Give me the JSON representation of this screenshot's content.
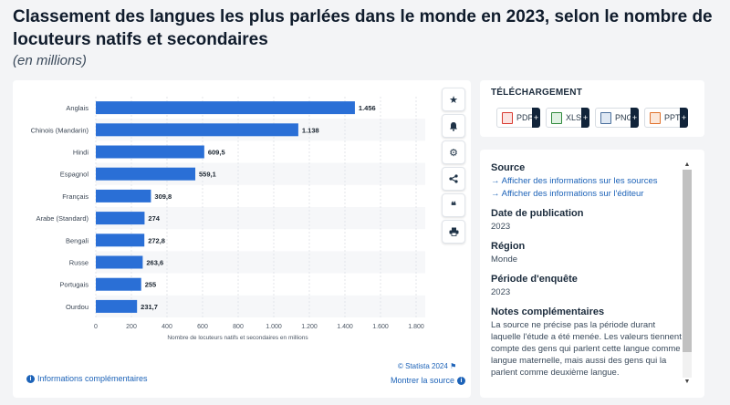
{
  "header": {
    "title": "Classement des langues les plus parlées dans le monde en 2023, selon le nombre de locuteurs natifs et secondaires",
    "subtitle": "(en millions)"
  },
  "chart_data": {
    "type": "bar",
    "orientation": "horizontal",
    "title": "Classement des langues les plus parlées dans le monde en 2023, selon le nombre de locuteurs natifs et secondaires",
    "subtitle": "(en millions)",
    "xlabel": "Nombre de locuteurs natifs et secondaires en millions",
    "ylabel": "",
    "categories": [
      "Anglais",
      "Chinois (Mandarin)",
      "Hindi",
      "Espagnol",
      "Français",
      "Arabe (Standard)",
      "Bengali",
      "Russe",
      "Portugais",
      "Ourdou"
    ],
    "values": [
      1456,
      1138,
      609.5,
      559.1,
      309.8,
      274,
      272.8,
      263.6,
      255,
      231.7
    ],
    "value_labels": [
      "1.456",
      "1.138",
      "609,5",
      "559,1",
      "309,8",
      "274",
      "272,8",
      "263,6",
      "255",
      "231,7"
    ],
    "xlim": [
      0,
      1800
    ],
    "xticks": [
      0,
      200,
      400,
      600,
      800,
      1000,
      1200,
      1400,
      1600,
      1800
    ],
    "xtick_labels": [
      "0",
      "200",
      "400",
      "600",
      "800",
      "1.000",
      "1.200",
      "1.400",
      "1.600",
      "1.800"
    ],
    "bar_color": "#2a6fd6",
    "grid": true,
    "legend": "none"
  },
  "footer": {
    "copyright": "© Statista 2024",
    "more_info": "Informations complémentaires",
    "show_source": "Montrer la source"
  },
  "toolbar": {
    "icons": [
      "star-icon",
      "bell-icon",
      "gear-icon",
      "share-icon",
      "quote-icon",
      "print-icon"
    ]
  },
  "download": {
    "title": "TÉLÉCHARGEMENT",
    "buttons": [
      {
        "label": "PDF",
        "color": "#d8382f"
      },
      {
        "label": "XLS",
        "color": "#2f8a3c"
      },
      {
        "label": "PNG",
        "color": "#4a6f9d"
      },
      {
        "label": "PPT",
        "color": "#e0712b"
      }
    ]
  },
  "source_panel": {
    "source_heading": "Source",
    "source_links": [
      "Afficher des informations sur les sources",
      "Afficher des informations sur l'éditeur"
    ],
    "date_heading": "Date de publication",
    "date_value": "2023",
    "region_heading": "Région",
    "region_value": "Monde",
    "period_heading": "Période d'enquête",
    "period_value": "2023",
    "notes_heading": "Notes complémentaires",
    "notes_value": "La source ne précise pas la période durant laquelle l'étude a été menée. Les valeurs tiennent compte des gens qui parlent cette langue comme langue maternelle, mais aussi des gens qui la parlent comme deuxième langue."
  }
}
